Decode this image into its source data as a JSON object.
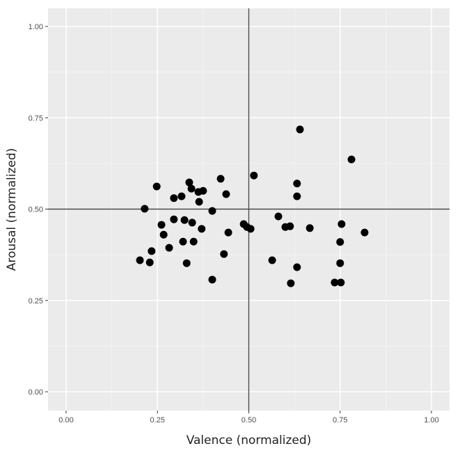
{
  "chart_data": {
    "type": "scatter",
    "title": "",
    "xlabel": "Valence (normalized)",
    "ylabel": "Arousal (normalized)",
    "xlim": [
      0,
      1
    ],
    "ylim": [
      0,
      1
    ],
    "x_ticks": [
      "0.00",
      "0.25",
      "0.50",
      "0.75",
      "1.00"
    ],
    "y_ticks": [
      "0.00",
      "0.25",
      "0.50",
      "0.75",
      "1.00"
    ],
    "grid": true,
    "legend": null,
    "reference_lines": {
      "vertical_x": 0.5,
      "horizontal_y": 0.5
    },
    "marker_color": "#000000",
    "panel_background": "#ebebeb",
    "points": [
      {
        "x": 0.215,
        "y": 0.501
      },
      {
        "x": 0.248,
        "y": 0.562
      },
      {
        "x": 0.295,
        "y": 0.53
      },
      {
        "x": 0.316,
        "y": 0.535
      },
      {
        "x": 0.337,
        "y": 0.573
      },
      {
        "x": 0.343,
        "y": 0.556
      },
      {
        "x": 0.364,
        "y": 0.52
      },
      {
        "x": 0.362,
        "y": 0.547
      },
      {
        "x": 0.375,
        "y": 0.55
      },
      {
        "x": 0.423,
        "y": 0.583
      },
      {
        "x": 0.438,
        "y": 0.541
      },
      {
        "x": 0.4,
        "y": 0.495
      },
      {
        "x": 0.514,
        "y": 0.592
      },
      {
        "x": 0.261,
        "y": 0.457
      },
      {
        "x": 0.267,
        "y": 0.43
      },
      {
        "x": 0.295,
        "y": 0.472
      },
      {
        "x": 0.324,
        "y": 0.47
      },
      {
        "x": 0.345,
        "y": 0.463
      },
      {
        "x": 0.371,
        "y": 0.446
      },
      {
        "x": 0.282,
        "y": 0.394
      },
      {
        "x": 0.32,
        "y": 0.411
      },
      {
        "x": 0.349,
        "y": 0.411
      },
      {
        "x": 0.234,
        "y": 0.385
      },
      {
        "x": 0.202,
        "y": 0.36
      },
      {
        "x": 0.229,
        "y": 0.354
      },
      {
        "x": 0.33,
        "y": 0.352
      },
      {
        "x": 0.444,
        "y": 0.436
      },
      {
        "x": 0.432,
        "y": 0.377
      },
      {
        "x": 0.4,
        "y": 0.307
      },
      {
        "x": 0.486,
        "y": 0.459
      },
      {
        "x": 0.495,
        "y": 0.451
      },
      {
        "x": 0.505,
        "y": 0.446
      },
      {
        "x": 0.581,
        "y": 0.48
      },
      {
        "x": 0.6,
        "y": 0.451
      },
      {
        "x": 0.613,
        "y": 0.453
      },
      {
        "x": 0.667,
        "y": 0.448
      },
      {
        "x": 0.564,
        "y": 0.36
      },
      {
        "x": 0.632,
        "y": 0.57
      },
      {
        "x": 0.632,
        "y": 0.535
      },
      {
        "x": 0.64,
        "y": 0.718
      },
      {
        "x": 0.632,
        "y": 0.341
      },
      {
        "x": 0.615,
        "y": 0.297
      },
      {
        "x": 0.754,
        "y": 0.459
      },
      {
        "x": 0.75,
        "y": 0.41
      },
      {
        "x": 0.75,
        "y": 0.352
      },
      {
        "x": 0.735,
        "y": 0.299
      },
      {
        "x": 0.752,
        "y": 0.299
      },
      {
        "x": 0.781,
        "y": 0.636
      },
      {
        "x": 0.817,
        "y": 0.436
      }
    ]
  }
}
